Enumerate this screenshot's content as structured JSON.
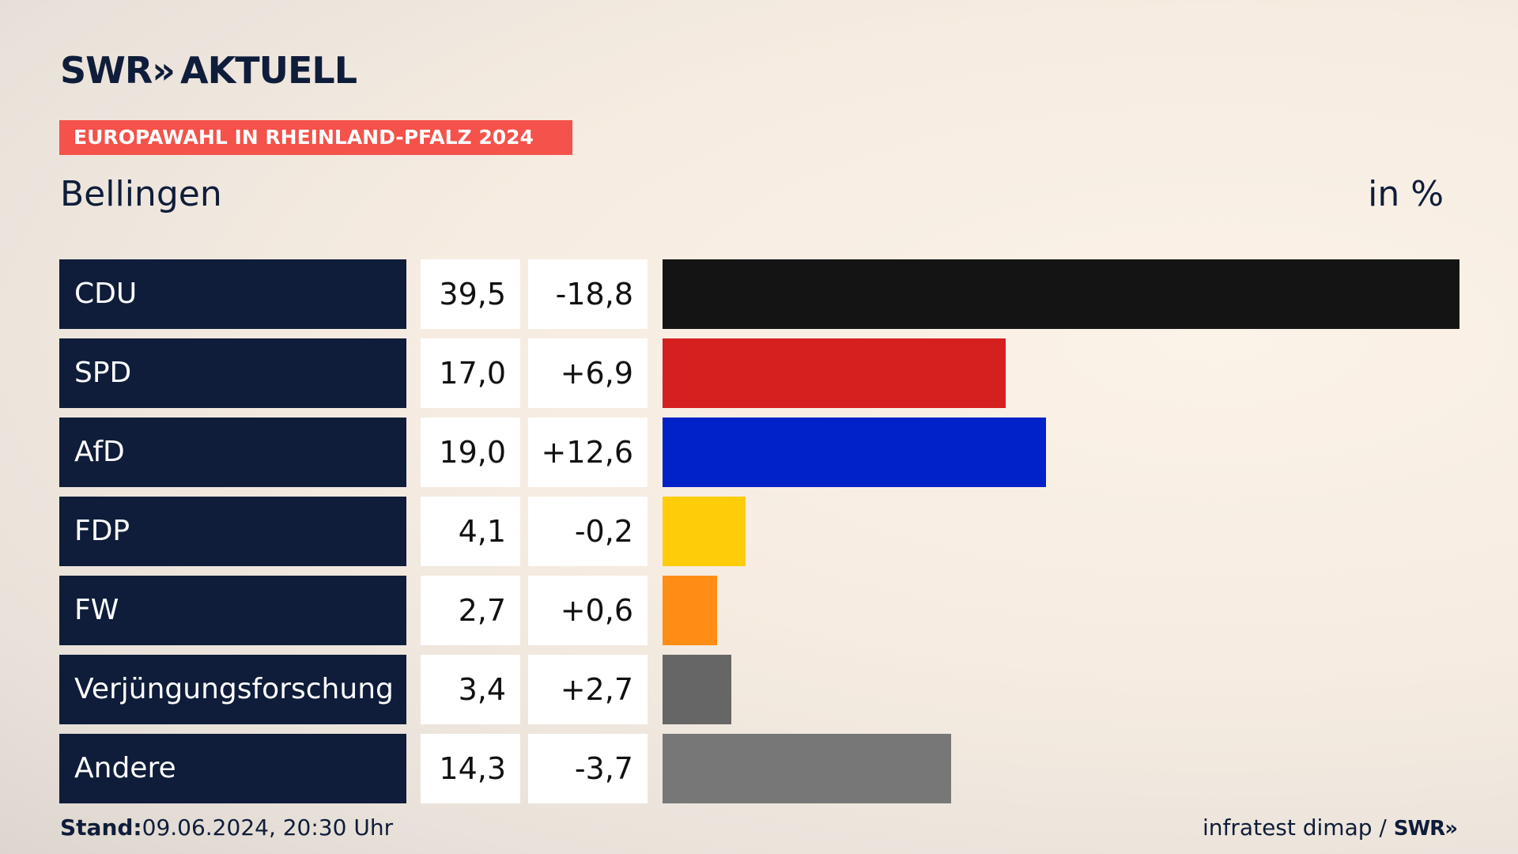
{
  "brand": {
    "logo_left": "SWR",
    "logo_chevrons": "»",
    "logo_right": "AKTUELL"
  },
  "banner": "EUROPAWAHL IN RHEINLAND-PFALZ 2024",
  "region": "Bellingen",
  "unit": "in %",
  "footer": {
    "stand_label": "Stand:",
    "stand_value": "09.06.2024, 20:30 Uhr",
    "source": "infratest dimap /",
    "source_logo": "SWR»"
  },
  "colors": {
    "navy": "#0f1d3a",
    "banner": "#f4524a"
  },
  "chart_data": {
    "type": "bar",
    "orientation": "horizontal",
    "categories": [
      "CDU",
      "SPD",
      "AfD",
      "FDP",
      "FW",
      "Verjüngungsforschung",
      "Andere"
    ],
    "values": [
      39.5,
      17.0,
      19.0,
      4.1,
      2.7,
      3.4,
      14.3
    ],
    "value_labels": [
      "39,5",
      "17,0",
      "19,0",
      "4,1",
      "2,7",
      "3,4",
      "14,3"
    ],
    "diff_labels": [
      "-18,8",
      "+6,9",
      "+12,6",
      "-0,2",
      "+0,6",
      "+2,7",
      "-3,7"
    ],
    "bar_colors": [
      "#141414",
      "#d61f1f",
      "#0022c8",
      "#ffcc0a",
      "#ff8c14",
      "#666666",
      "#777777"
    ],
    "xlim": [
      0,
      39.5
    ],
    "grid": false,
    "legend": "none"
  }
}
